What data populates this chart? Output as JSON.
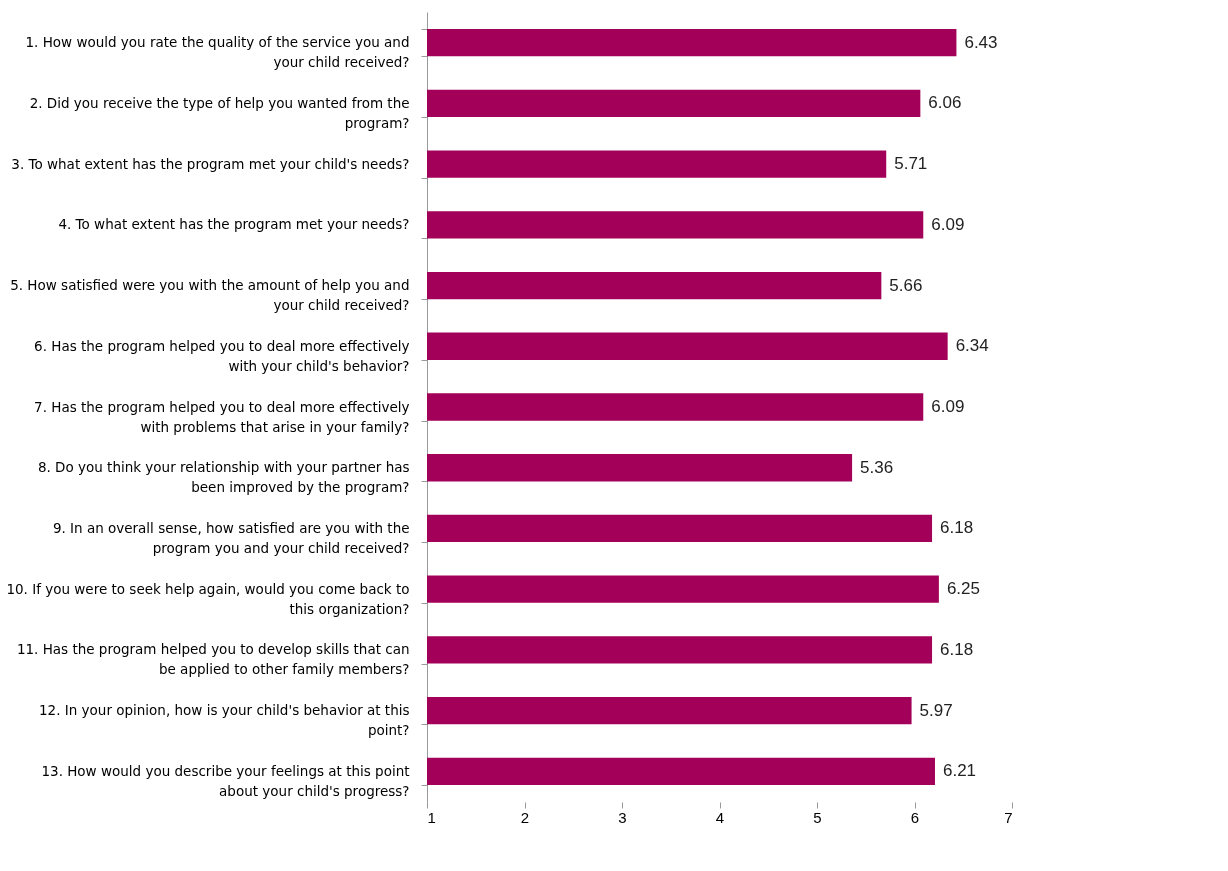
{
  "chart_data": {
    "type": "bar",
    "orientation": "horizontal",
    "categories": [
      "1. How would you rate the quality of the service you and your child received?",
      "2. Did you receive the type of help you wanted from the program?",
      "3. To what extent has the program met your child's needs?",
      "4. To what extent has the program met your needs?",
      "5. How satisfied were you with the amount of help you and your child received?",
      "6. Has the program helped you to deal more effectively with your child's behavior?",
      "7. Has the program helped you to deal more effectively with problems that arise in your family?",
      "8. Do you think your relationship with your partner has been improved by the program?",
      "9. In an overall sense, how satisfied are you with the program you and your child received?",
      "10. If you were to seek help again, would you come back to this organization?",
      "11. Has the program helped you to develop skills that can be applied to other family members?",
      "12. In your opinion, how is your child's behavior at this point?",
      "13. How would you describe your feelings at this point about your child's progress?"
    ],
    "values": [
      6.43,
      6.06,
      5.71,
      6.09,
      5.66,
      6.34,
      6.09,
      5.36,
      6.18,
      6.25,
      6.18,
      5.97,
      6.21
    ],
    "color": "#a3005a",
    "xlim": [
      1,
      7
    ],
    "xticks": [
      1,
      2,
      3,
      4,
      5,
      6,
      7
    ],
    "data_labels": true,
    "grid": false
  }
}
